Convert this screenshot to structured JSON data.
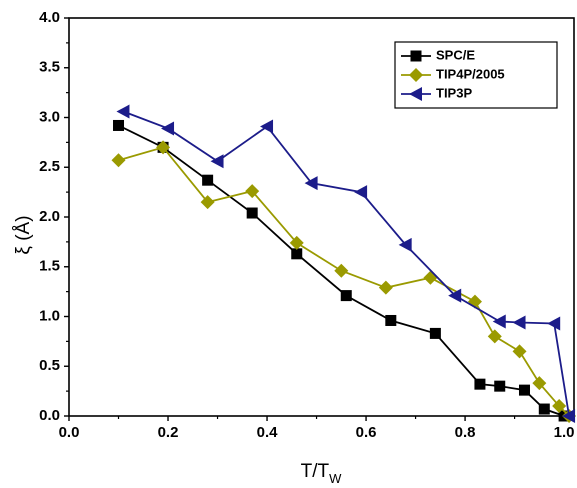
{
  "chart_data": {
    "type": "line",
    "title": "",
    "xlabel": {
      "main": "T/T",
      "sub": "W"
    },
    "ylabel": "ξ (Å)",
    "xlim": [
      0.0,
      1.02
    ],
    "ylim": [
      0.0,
      4.0
    ],
    "xticks": [
      "0.0",
      "0.2",
      "0.4",
      "0.6",
      "0.8",
      "1.0"
    ],
    "yticks": [
      "0.0",
      "0.5",
      "1.0",
      "1.5",
      "2.0",
      "2.5",
      "3.0",
      "3.5",
      "4.0"
    ],
    "grid": false,
    "legend_position": "top-right",
    "series": [
      {
        "name": "SPC/E",
        "color": "#000000",
        "marker": "square",
        "x": [
          0.1,
          0.19,
          0.28,
          0.37,
          0.46,
          0.56,
          0.65,
          0.74,
          0.83,
          0.87,
          0.92,
          0.96,
          1.0
        ],
        "y": [
          2.92,
          2.7,
          2.37,
          2.04,
          1.63,
          1.21,
          0.96,
          0.83,
          0.32,
          0.3,
          0.26,
          0.07,
          0.0
        ]
      },
      {
        "name": "TIP4P/2005",
        "color": "#9a9a00",
        "marker": "diamond",
        "x": [
          0.1,
          0.19,
          0.28,
          0.37,
          0.46,
          0.55,
          0.64,
          0.73,
          0.82,
          0.86,
          0.91,
          0.95,
          0.99,
          1.01
        ],
        "y": [
          2.57,
          2.7,
          2.15,
          2.26,
          1.74,
          1.46,
          1.29,
          1.39,
          1.15,
          0.8,
          0.65,
          0.33,
          0.1,
          0.0
        ]
      },
      {
        "name": "TIP3P",
        "color": "#1c1c8a",
        "marker": "triangle-left",
        "x": [
          0.11,
          0.2,
          0.3,
          0.4,
          0.49,
          0.59,
          0.68,
          0.78,
          0.87,
          0.91,
          0.98,
          1.01
        ],
        "y": [
          3.06,
          2.89,
          2.56,
          2.91,
          2.34,
          2.25,
          1.72,
          1.21,
          0.95,
          0.94,
          0.93,
          0.0
        ]
      }
    ]
  }
}
